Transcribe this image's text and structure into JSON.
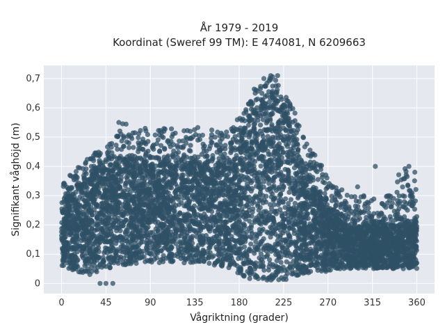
{
  "chart_data": {
    "type": "scatter",
    "title": "År 1979 - 2019",
    "subtitle": "Koordinat (Sweref 99 TM): E 474081, N 6209663",
    "xlabel": "Vågriktning (grader)",
    "ylabel": "Signifikant våghöjd (m)",
    "xlim": [
      -18,
      378
    ],
    "ylim": [
      -0.035,
      0.745
    ],
    "xticks": [
      0,
      45,
      90,
      135,
      180,
      225,
      270,
      315,
      360
    ],
    "xtick_labels": [
      "0",
      "45",
      "90",
      "135",
      "180",
      "225",
      "270",
      "315",
      "360"
    ],
    "yticks": [
      0,
      0.1,
      0.2,
      0.3,
      0.4,
      0.5,
      0.6,
      0.7
    ],
    "ytick_labels": [
      "0",
      "0,1",
      "0,2",
      "0,3",
      "0,4",
      "0,5",
      "0,6",
      "0,7"
    ],
    "grid": true,
    "marker_color": "#2f5066",
    "background_color": "#e5e8ef",
    "envelope": {
      "x": [
        0,
        10,
        20,
        35,
        45,
        55,
        60,
        70,
        90,
        110,
        135,
        160,
        175,
        180,
        185,
        195,
        205,
        215,
        225,
        235,
        245,
        255,
        265,
        270,
        280,
        290,
        300,
        315,
        330,
        345,
        360
      ],
      "lower": [
        0.06,
        0.04,
        0.03,
        0.03,
        0.04,
        0.05,
        0.06,
        0.06,
        0.07,
        0.07,
        0.07,
        0.06,
        0.05,
        0.03,
        0.02,
        0.01,
        0.01,
        0.01,
        0.01,
        0.02,
        0.03,
        0.04,
        0.04,
        0.04,
        0.05,
        0.05,
        0.05,
        0.05,
        0.05,
        0.05,
        0.05
      ],
      "dense_upper": [
        0.25,
        0.3,
        0.33,
        0.37,
        0.38,
        0.4,
        0.42,
        0.42,
        0.4,
        0.41,
        0.41,
        0.4,
        0.42,
        0.45,
        0.52,
        0.58,
        0.6,
        0.6,
        0.58,
        0.5,
        0.4,
        0.33,
        0.28,
        0.26,
        0.22,
        0.2,
        0.2,
        0.2,
        0.2,
        0.2,
        0.2
      ],
      "max": [
        0.34,
        0.38,
        0.42,
        0.45,
        0.47,
        0.5,
        0.55,
        0.54,
        0.53,
        0.53,
        0.54,
        0.52,
        0.55,
        0.58,
        0.62,
        0.67,
        0.7,
        0.71,
        0.65,
        0.6,
        0.52,
        0.45,
        0.4,
        0.38,
        0.34,
        0.32,
        0.3,
        0.3,
        0.31,
        0.4,
        0.38
      ]
    },
    "notable_points": [
      {
        "x": 45,
        "y": 0.0
      },
      {
        "x": 39,
        "y": 0.0
      },
      {
        "x": 52,
        "y": 0.0
      },
      {
        "x": 212,
        "y": 0.71
      },
      {
        "x": 219,
        "y": 0.71
      },
      {
        "x": 205,
        "y": 0.7
      },
      {
        "x": 211,
        "y": 0.7
      },
      {
        "x": 300,
        "y": 0.33
      },
      {
        "x": 318,
        "y": 0.4
      },
      {
        "x": 352,
        "y": 0.4
      },
      {
        "x": 358,
        "y": 0.38
      },
      {
        "x": 2,
        "y": 0.34
      },
      {
        "x": 58,
        "y": 0.55
      }
    ]
  }
}
